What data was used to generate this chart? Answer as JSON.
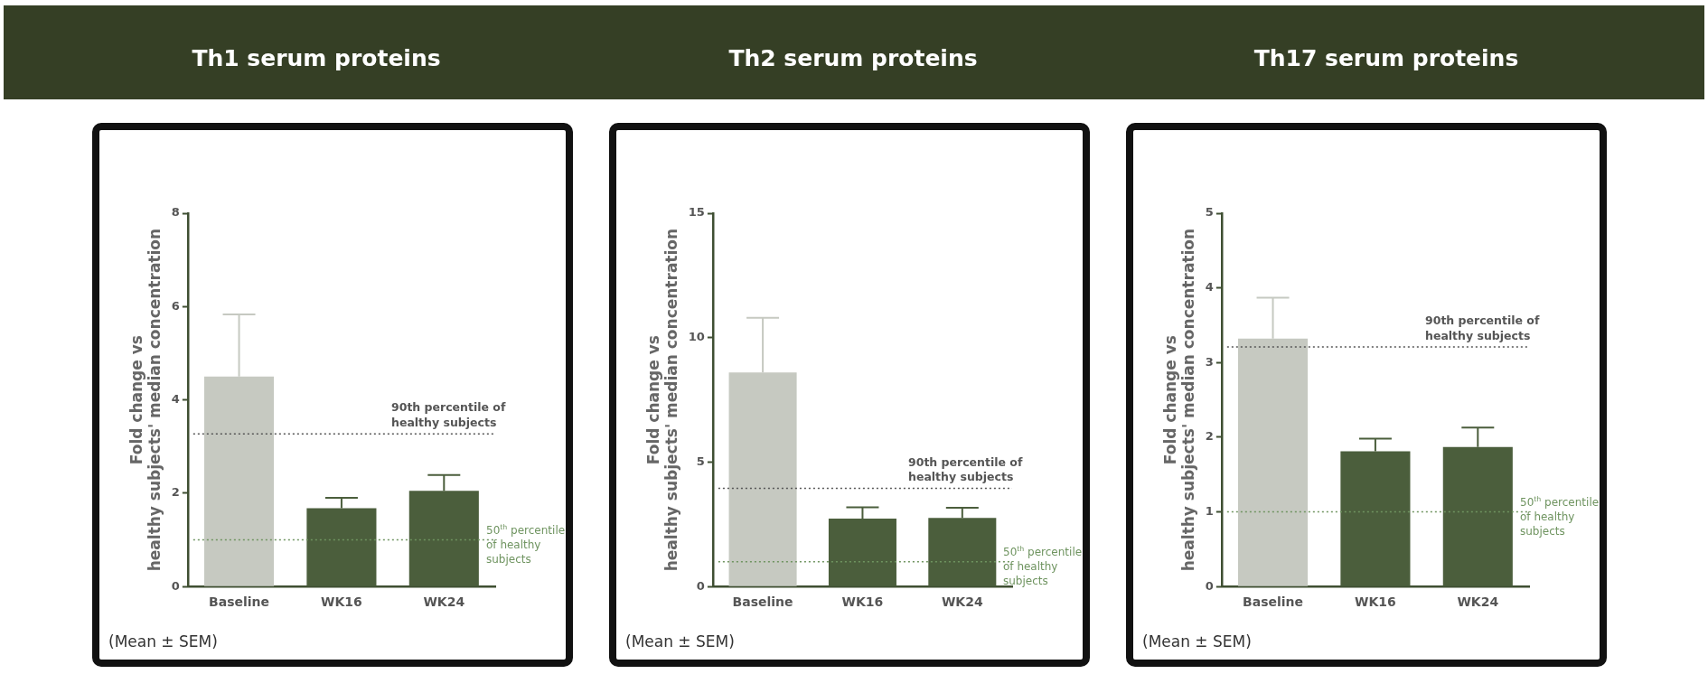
{
  "chart_data": [
    {
      "type": "bar",
      "title": "Th1 serum proteins",
      "ylabel": "Fold change vs\nhealthy subjects' median concentration",
      "categories": [
        "Baseline",
        "WK16",
        "WK24"
      ],
      "values": [
        4.5,
        1.68,
        2.05
      ],
      "colors": [
        "#c6c9c1",
        "#4b5e3c",
        "#4b5e3c"
      ],
      "errors": [
        [
          4.5,
          5.83
        ],
        [
          1.68,
          1.9
        ],
        [
          2.05,
          2.39
        ]
      ],
      "ylim": [
        0,
        8
      ],
      "yticks": [
        0,
        2,
        4,
        6,
        8
      ],
      "grid": false,
      "legend": false,
      "ref_lines": [
        {
          "axis": "y",
          "value": 3.27,
          "label": "90th percentile of healthy subjects",
          "color": "#555555",
          "line_style": "dotted"
        },
        {
          "axis": "y",
          "value": 1,
          "label": "50$^{th}$ percentile of healthy subjects",
          "color": "#6f9460",
          "line_style": "dotted"
        }
      ],
      "annotations": [
        "(Mean ± SEM)"
      ]
    },
    {
      "type": "bar",
      "title": "Th2 serum proteins",
      "ylabel": "Fold change vs\nhealthy subjects' median concentration",
      "categories": [
        "Baseline",
        "WK16",
        "WK24"
      ],
      "values": [
        8.6,
        2.73,
        2.76
      ],
      "colors": [
        "#c6c9c1",
        "#4b5e3c",
        "#4b5e3c"
      ],
      "errors": [
        [
          8.6,
          10.8
        ],
        [
          2.73,
          3.18
        ],
        [
          2.76,
          3.17
        ]
      ],
      "ylim": [
        0,
        15
      ],
      "yticks": [
        0,
        5,
        10,
        15
      ],
      "grid": false,
      "legend": false,
      "ref_lines": [
        {
          "axis": "y",
          "value": 3.95,
          "label": "90th percentile of healthy subjects",
          "color": "#555555",
          "line_style": "dotted"
        },
        {
          "axis": "y",
          "value": 1,
          "label": "50$^{th}$ percentile of healthy subjects",
          "color": "#6f9460",
          "line_style": "dotted"
        }
      ],
      "annotations": [
        "(Mean ± SEM)"
      ]
    },
    {
      "type": "bar",
      "title": "Th17 serum proteins",
      "ylabel": "Fold change vs\nhealthy subjects' median concentration",
      "categories": [
        "Baseline",
        "WK16",
        "WK24"
      ],
      "values": [
        3.32,
        1.81,
        1.87
      ],
      "colors": [
        "#c6c9c1",
        "#4b5e3c",
        "#4b5e3c"
      ],
      "errors": [
        [
          3.32,
          3.87
        ],
        [
          1.81,
          1.98
        ],
        [
          1.87,
          2.13
        ]
      ],
      "ylim": [
        0,
        5
      ],
      "yticks": [
        0,
        1,
        2,
        3,
        4,
        5
      ],
      "grid": false,
      "legend": false,
      "ref_lines": [
        {
          "axis": "y",
          "value": 3.21,
          "label": "90th percentile of healthy subjects",
          "color": "#555555",
          "line_style": "dotted"
        },
        {
          "axis": "y",
          "value": 1,
          "label": "50$^{th}$ percentile of healthy subjects",
          "color": "#6f9460",
          "line_style": "dotted"
        }
      ],
      "annotations": [
        "(Mean ± SEM)"
      ]
    }
  ]
}
